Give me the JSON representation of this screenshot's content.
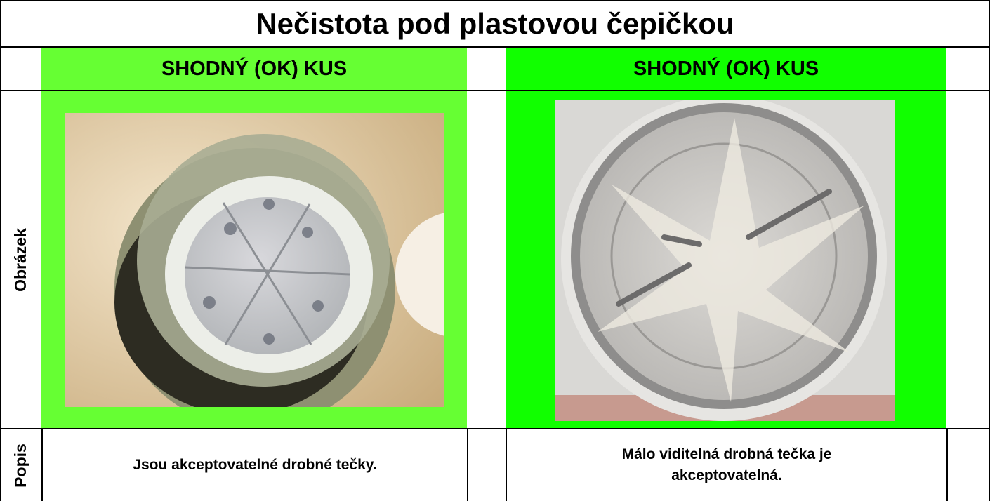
{
  "title": "Nečistota pod plastovou čepičkou",
  "columns": [
    "SHODNÝ (OK) KUS",
    "SHODNÝ (OK) KUS"
  ],
  "rows": [
    {
      "label": "Obrázek"
    },
    {
      "label": "Popis",
      "cells": [
        "Jsou akceptovatelné drobné tečky.",
        "Málo viditelná drobná tečka je akceptovatelná."
      ]
    }
  ]
}
